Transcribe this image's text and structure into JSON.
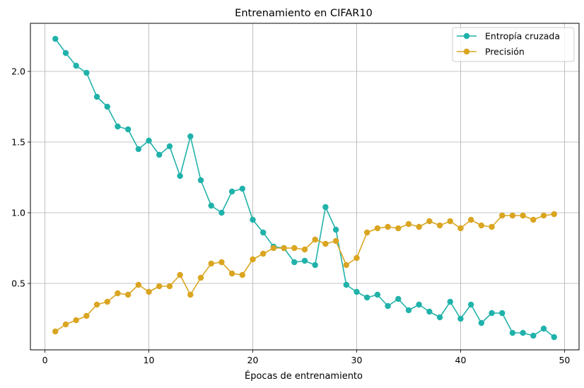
{
  "chart_data": {
    "type": "line",
    "title": "Entrenamiento en CIFAR10",
    "xlabel": "Épocas de entrenamiento",
    "ylabel": "",
    "xlim": [
      -1.4,
      51.4
    ],
    "ylim": [
      0.03,
      2.34
    ],
    "xticks": [
      0,
      10,
      20,
      30,
      40,
      50
    ],
    "yticks": [
      0.5,
      1.0,
      1.5,
      2.0
    ],
    "ytick_labels": [
      "0.5",
      "1.0",
      "1.5",
      "2.0"
    ],
    "grid": true,
    "legend_position": "top-right",
    "x": [
      1,
      2,
      3,
      4,
      5,
      6,
      7,
      8,
      9,
      10,
      11,
      12,
      13,
      14,
      15,
      16,
      17,
      18,
      19,
      20,
      21,
      22,
      23,
      24,
      25,
      26,
      27,
      28,
      29,
      30,
      31,
      32,
      33,
      34,
      35,
      36,
      37,
      38,
      39,
      40,
      41,
      42,
      43,
      44,
      45,
      46,
      47,
      48,
      49
    ],
    "series": [
      {
        "name": "Entropía cruzada",
        "color": "#20b2aa",
        "values": [
          2.23,
          2.13,
          2.04,
          1.99,
          1.82,
          1.75,
          1.61,
          1.59,
          1.45,
          1.51,
          1.41,
          1.47,
          1.26,
          1.54,
          1.23,
          1.05,
          1.0,
          1.15,
          1.17,
          0.95,
          0.86,
          0.76,
          0.75,
          0.65,
          0.66,
          0.63,
          1.04,
          0.88,
          0.49,
          0.44,
          0.4,
          0.42,
          0.34,
          0.39,
          0.31,
          0.35,
          0.3,
          0.26,
          0.37,
          0.25,
          0.35,
          0.22,
          0.29,
          0.29,
          0.15,
          0.15,
          0.13,
          0.18,
          0.12
        ]
      },
      {
        "name": "Precisión",
        "color": "#daa520",
        "values": [
          0.16,
          0.21,
          0.24,
          0.27,
          0.35,
          0.37,
          0.43,
          0.42,
          0.49,
          0.44,
          0.48,
          0.48,
          0.56,
          0.42,
          0.54,
          0.64,
          0.65,
          0.57,
          0.56,
          0.67,
          0.71,
          0.75,
          0.75,
          0.75,
          0.74,
          0.81,
          0.78,
          0.8,
          0.63,
          0.68,
          0.86,
          0.89,
          0.9,
          0.89,
          0.92,
          0.9,
          0.94,
          0.91,
          0.94,
          0.89,
          0.95,
          0.91,
          0.9,
          0.98,
          0.98,
          0.98,
          0.95,
          0.98,
          0.99
        ]
      }
    ]
  }
}
